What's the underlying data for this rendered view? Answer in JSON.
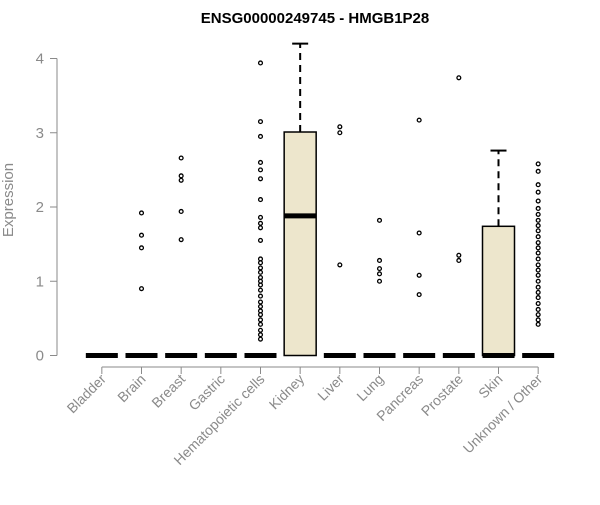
{
  "chart_data": {
    "type": "box",
    "title": "ENSG00000249745 - HMGB1P28",
    "xlabel": "",
    "ylabel": "Expression",
    "ylim": [
      0,
      4.2
    ],
    "yticks": [
      0,
      1,
      2,
      3,
      4
    ],
    "grid": false,
    "legend": "none",
    "box_fill": "#ede6cc",
    "categories": [
      "Bladder",
      "Brain",
      "Breast",
      "Gastric",
      "Hematopoietic cells",
      "Kidney",
      "Liver",
      "Lung",
      "Pancreas",
      "Prostate",
      "Skin",
      "Unknown / Other"
    ],
    "boxes": [
      {
        "q1": 0,
        "median": 0,
        "q3": 0,
        "whisker_low": 0,
        "whisker_high": 0,
        "outliers": []
      },
      {
        "q1": 0,
        "median": 0,
        "q3": 0,
        "whisker_low": 0,
        "whisker_high": 0,
        "outliers": [
          0.9,
          1.45,
          1.62,
          1.92
        ]
      },
      {
        "q1": 0,
        "median": 0,
        "q3": 0,
        "whisker_low": 0,
        "whisker_high": 0,
        "outliers": [
          1.56,
          1.94,
          2.36,
          2.42,
          2.66
        ]
      },
      {
        "q1": 0,
        "median": 0,
        "q3": 0,
        "whisker_low": 0,
        "whisker_high": 0,
        "outliers": []
      },
      {
        "q1": 0,
        "median": 0,
        "q3": 0,
        "whisker_low": 0,
        "whisker_high": 0,
        "outliers": [
          0.22,
          0.28,
          0.34,
          0.42,
          0.48,
          0.55,
          0.6,
          0.66,
          0.72,
          0.8,
          0.88,
          0.95,
          1.0,
          1.05,
          1.12,
          1.18,
          1.25,
          1.3,
          1.55,
          1.72,
          1.78,
          1.86,
          2.1,
          2.38,
          2.5,
          2.6,
          2.95,
          3.15,
          3.94
        ]
      },
      {
        "q1": 0,
        "median": 1.88,
        "q3": 3.01,
        "whisker_low": 0,
        "whisker_high": 4.2,
        "outliers": []
      },
      {
        "q1": 0,
        "median": 0,
        "q3": 0,
        "whisker_low": 0,
        "whisker_high": 0,
        "outliers": [
          1.22,
          3.0,
          3.08
        ]
      },
      {
        "q1": 0,
        "median": 0,
        "q3": 0,
        "whisker_low": 0,
        "whisker_high": 0,
        "outliers": [
          1.0,
          1.1,
          1.17,
          1.28,
          1.82
        ]
      },
      {
        "q1": 0,
        "median": 0,
        "q3": 0,
        "whisker_low": 0,
        "whisker_high": 0,
        "outliers": [
          0.82,
          1.08,
          1.65,
          3.17
        ]
      },
      {
        "q1": 0,
        "median": 0,
        "q3": 0,
        "whisker_low": 0,
        "whisker_high": 0,
        "outliers": [
          1.28,
          1.35,
          3.74
        ]
      },
      {
        "q1": 0,
        "median": 0,
        "q3": 1.74,
        "whisker_low": 0,
        "whisker_high": 2.76,
        "outliers": []
      },
      {
        "q1": 0,
        "median": 0,
        "q3": 0,
        "whisker_low": 0,
        "whisker_high": 0,
        "outliers": [
          0.42,
          0.48,
          0.55,
          0.62,
          0.7,
          0.78,
          0.85,
          0.92,
          1.0,
          1.08,
          1.15,
          1.22,
          1.3,
          1.38,
          1.45,
          1.52,
          1.6,
          1.68,
          1.75,
          1.82,
          1.9,
          1.98,
          2.08,
          2.2,
          2.3,
          2.48,
          2.58
        ]
      }
    ]
  }
}
